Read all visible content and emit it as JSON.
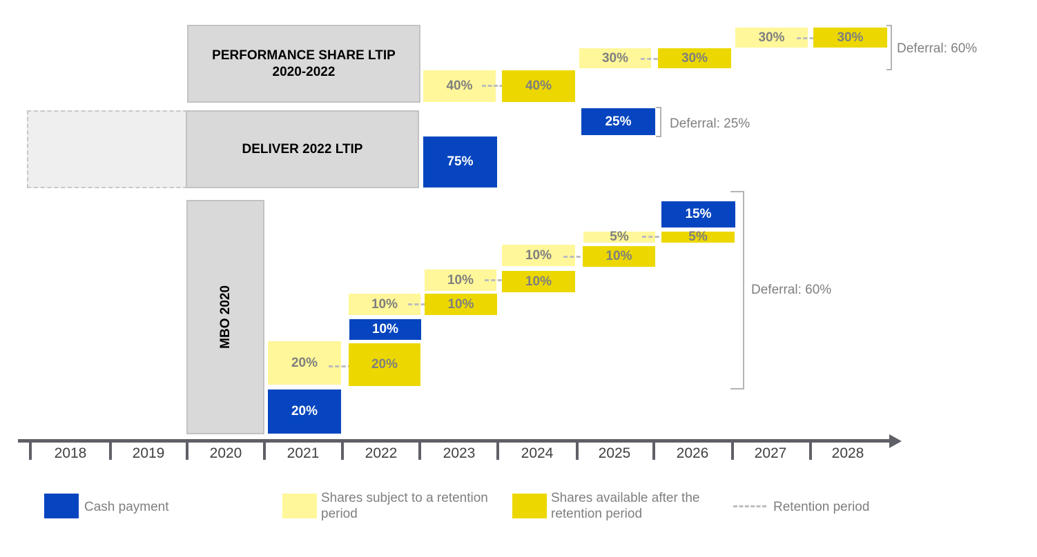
{
  "plans": {
    "performance": "PERFORMANCE SHARE LTIP\n2020-2022",
    "deliver": "DELIVER 2022 LTIP",
    "mbo": "MBO 2020"
  },
  "performance": {
    "ret_2023": "40%",
    "avail_2024": "40%",
    "ret_2025": "30%",
    "avail_2026": "30%",
    "ret_2027": "30%",
    "avail_2028": "30%",
    "deferral": "Deferral: 60%"
  },
  "deliver": {
    "cash_2023": "75%",
    "cash_2025": "25%",
    "deferral": "Deferral: 25%"
  },
  "mbo": {
    "cash_2021": "20%",
    "ret_2021": "20%",
    "avail_2022": "20%",
    "cash_2022": "10%",
    "ret_2022": "10%",
    "avail_2023": "10%",
    "ret_2023": "10%",
    "avail_2024": "10%",
    "ret_2024": "10%",
    "avail_2025": "10%",
    "ret_2025": "5%",
    "avail_2026": "5%",
    "cash_2026": "15%",
    "deferral": "Deferral: 60%"
  },
  "years": [
    "2018",
    "2019",
    "2020",
    "2021",
    "2022",
    "2023",
    "2024",
    "2025",
    "2026",
    "2027",
    "2028"
  ],
  "legend": {
    "cash": "Cash payment",
    "retention": "Shares subject to a retention period",
    "available": "Shares available after the retention period",
    "period": "Retention period"
  },
  "colors": {
    "cash": "#0645bf",
    "retention": "#fff799",
    "available": "#ecd800",
    "plan": "#d9d9d9",
    "axis": "#5f5f67"
  }
}
